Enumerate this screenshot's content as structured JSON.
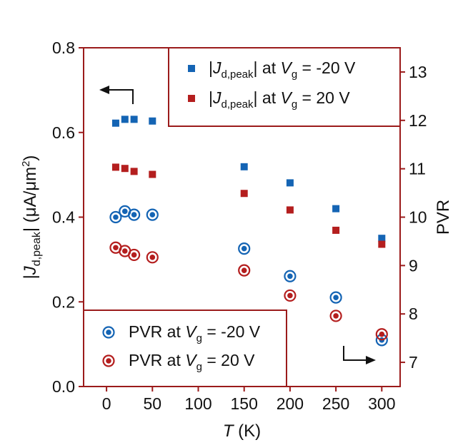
{
  "chart_data": {
    "type": "scatter",
    "xlabel": "T (K)",
    "ylabel": "|J_d,peak| (μA/μm²)",
    "y2label": "PVR",
    "xlim": [
      -25,
      320
    ],
    "ylim": [
      0,
      0.8
    ],
    "y2lim": [
      6.5,
      13.5
    ],
    "xticks": [
      0,
      50,
      100,
      150,
      200,
      250,
      300
    ],
    "yticks": [
      0.0,
      0.2,
      0.4,
      0.6,
      0.8
    ],
    "y2ticks": [
      7,
      8,
      9,
      10,
      11,
      12,
      13
    ],
    "xtick_labels": [
      "0",
      "50",
      "100",
      "150",
      "200",
      "250",
      "300"
    ],
    "ytick_labels": [
      "0.0",
      "0.2",
      "0.4",
      "0.6",
      "0.8"
    ],
    "y2tick_labels": [
      "7",
      "8",
      "9",
      "10",
      "11",
      "12",
      "13"
    ],
    "series": [
      {
        "name": "|J_d,peak| at V_g = -20 V",
        "axis": "left",
        "marker": "square",
        "color": "#1464b4",
        "x": [
          10,
          20,
          30,
          50,
          150,
          200,
          250,
          300
        ],
        "y": [
          0.622,
          0.631,
          0.631,
          0.627,
          0.519,
          0.481,
          0.42,
          0.35
        ]
      },
      {
        "name": "|J_d,peak| at V_g = 20 V",
        "axis": "left",
        "marker": "square",
        "color": "#b41e1e",
        "x": [
          10,
          20,
          30,
          50,
          150,
          200,
          250,
          300
        ],
        "y": [
          0.518,
          0.515,
          0.508,
          0.501,
          0.456,
          0.417,
          0.369,
          0.336
        ]
      },
      {
        "name": "PVR at V_g = -20 V",
        "axis": "right",
        "marker": "circle-dot",
        "color": "#1464b4",
        "x": [
          10,
          20,
          30,
          50,
          150,
          200,
          250,
          300
        ],
        "y": [
          10.0,
          10.12,
          10.05,
          10.05,
          9.35,
          8.78,
          8.34,
          7.46
        ]
      },
      {
        "name": "PVR at V_g = 20 V",
        "axis": "right",
        "marker": "circle-dot",
        "color": "#b41e1e",
        "x": [
          10,
          20,
          30,
          50,
          150,
          200,
          250,
          300
        ],
        "y": [
          9.37,
          9.3,
          9.22,
          9.17,
          8.9,
          8.38,
          7.96,
          7.58
        ]
      }
    ],
    "legends": {
      "top_right": {
        "items": [
          {
            "series": 0,
            "pre": "|",
            "J": "J",
            "sub": "d,peak",
            "mid": "| at ",
            "V": "V",
            "vsub": "g",
            "post": " = -20 V"
          },
          {
            "series": 1,
            "pre": "|",
            "J": "J",
            "sub": "d,peak",
            "mid": "| at ",
            "V": "V",
            "vsub": "g",
            "post": " = 20 V"
          }
        ]
      },
      "bottom_left": {
        "items": [
          {
            "series": 2,
            "pre": "PVR at ",
            "V": "V",
            "vsub": "g",
            "post": " = -20 V"
          },
          {
            "series": 3,
            "pre": "PVR at ",
            "V": "V",
            "vsub": "g",
            "post": " = 20 V"
          }
        ]
      }
    },
    "axis_labels": {
      "x": {
        "var": "T",
        "unit": " (K)"
      },
      "y": {
        "pre": "|",
        "var": "J",
        "sub": "d,peak",
        "post": "| (μA/μm",
        "sup": "2",
        "end": ")"
      },
      "y2": {
        "text": "PVR"
      }
    },
    "arrows": [
      {
        "meaning": "left-axis-indicator",
        "direction": "left"
      },
      {
        "meaning": "right-axis-indicator",
        "direction": "right"
      }
    ],
    "colors": {
      "frame": "#9b1b1b",
      "blue": "#1464b4",
      "red": "#b41e1e"
    }
  }
}
